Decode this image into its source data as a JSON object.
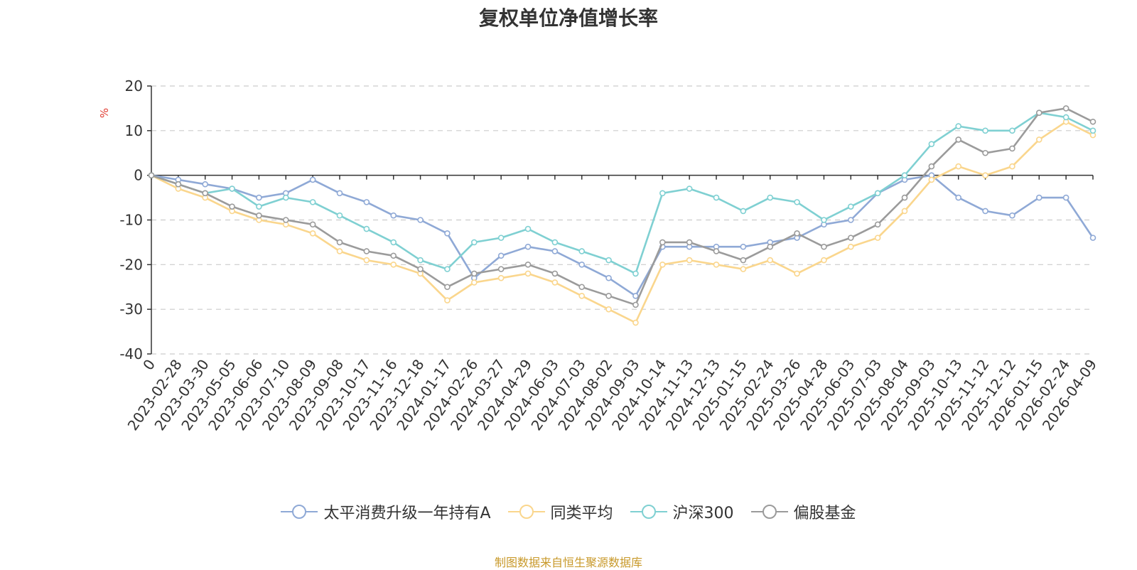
{
  "chart_data": {
    "type": "line",
    "title": "复权单位净值增长率",
    "ylabel": "%",
    "ylim": [
      -40,
      20
    ],
    "yticks": [
      20,
      10,
      0,
      -10,
      -20,
      -30,
      -40
    ],
    "xtick_labels": [
      "0",
      "2023-02-28",
      "2023-03-30",
      "2023-05-05",
      "2023-06-06",
      "2023-07-10",
      "2023-08-09",
      "2023-09-08",
      "2023-10-17",
      "2023-11-16",
      "2023-12-18",
      "2024-01-17",
      "2024-02-26",
      "2024-03-27",
      "2024-04-29",
      "2024-06-03",
      "2024-07-03",
      "2024-08-02",
      "2024-09-03",
      "2024-10-14",
      "2024-11-13",
      "2024-12-13",
      "2025-01-15",
      "2025-02-24",
      "2025-03-26",
      "2025-04-28",
      "2025-06-03",
      "2025-07-03",
      "2025-08-04",
      "2025-09-03",
      "2025-10-13",
      "2025-11-12",
      "2025-12-12",
      "2026-01-15",
      "2026-02-24",
      "2026-04-09"
    ],
    "grid": "horizontal-dashed",
    "legend_position": "bottom",
    "series": [
      {
        "name": "太平消费升级一年持有A",
        "color": "#8fa9d6",
        "values": [
          0,
          -1,
          -2,
          -3,
          -5,
          -4,
          -1,
          -4,
          -6,
          -9,
          -10,
          -13,
          -23,
          -18,
          -16,
          -17,
          -20,
          -23,
          -27,
          -16,
          -16,
          -16,
          -16,
          -15,
          -14,
          -11,
          -10,
          -4,
          -1,
          0,
          -5,
          -8,
          -9,
          -5,
          -5,
          -14
        ]
      },
      {
        "name": "同类平均",
        "color": "#fad68d",
        "values": [
          0,
          -3,
          -5,
          -8,
          -10,
          -11,
          -13,
          -17,
          -19,
          -20,
          -22,
          -28,
          -24,
          -23,
          -22,
          -24,
          -27,
          -30,
          -33,
          -20,
          -19,
          -20,
          -21,
          -19,
          -22,
          -19,
          -16,
          -14,
          -8,
          -1,
          2,
          0,
          2,
          8,
          12,
          9
        ]
      },
      {
        "name": "沪深300",
        "color": "#7fd0d2",
        "values": [
          0,
          -2,
          -4,
          -3,
          -7,
          -5,
          -6,
          -9,
          -12,
          -15,
          -19,
          -21,
          -15,
          -14,
          -12,
          -15,
          -17,
          -19,
          -22,
          -4,
          -3,
          -5,
          -8,
          -5,
          -6,
          -10,
          -7,
          -4,
          0,
          7,
          11,
          10,
          10,
          14,
          13,
          10
        ]
      },
      {
        "name": "偏股基金",
        "color": "#9b9b9b",
        "values": [
          0,
          -2,
          -4,
          -7,
          -9,
          -10,
          -11,
          -15,
          -17,
          -18,
          -21,
          -25,
          -22,
          -21,
          -20,
          -22,
          -25,
          -27,
          -29,
          -15,
          -15,
          -17,
          -19,
          -16,
          -13,
          -16,
          -14,
          -11,
          -5,
          2,
          8,
          5,
          6,
          14,
          15,
          12
        ]
      }
    ]
  },
  "footer": {
    "source_note": "制图数据来自恒生聚源数据库"
  }
}
